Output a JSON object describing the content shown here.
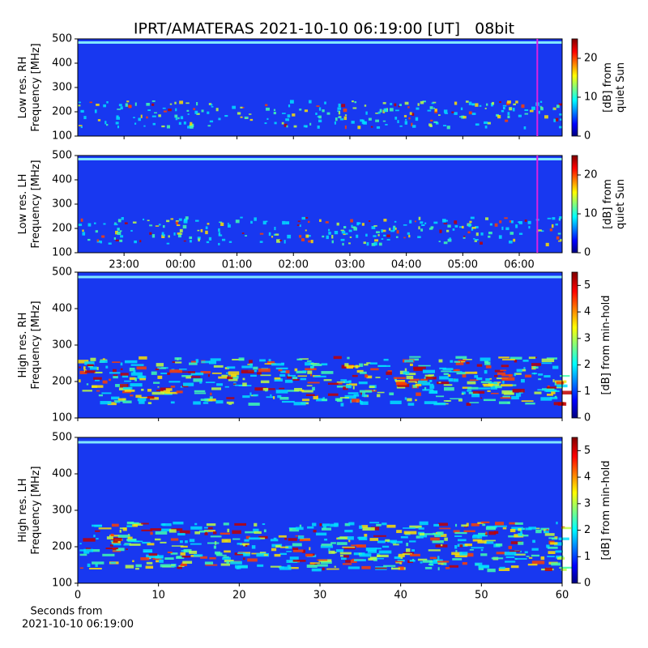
{
  "title": "IPRT/AMATERAS 2021-10-10 06:19:00 [UT]   08bit",
  "chart_data": [
    {
      "type": "heatmap",
      "ylabel": [
        "Low res. RH",
        "Frequency [MHz]"
      ],
      "ylim": [
        100,
        500
      ],
      "yticks": [
        100,
        200,
        300,
        400,
        500
      ],
      "xlim": [
        22.18,
        30.76
      ],
      "xticks": [
        {
          "value": 23,
          "label": "23:00"
        },
        {
          "value": 24,
          "label": "00:00"
        },
        {
          "value": 25,
          "label": "01:00"
        },
        {
          "value": 26,
          "label": "02:00"
        },
        {
          "value": 27,
          "label": "03:00"
        },
        {
          "value": 28,
          "label": "04:00"
        },
        {
          "value": 29,
          "label": "05:00"
        },
        {
          "value": 30,
          "label": "06:00"
        }
      ],
      "show_xtick_labels": false,
      "marker_x": 30.32,
      "marker_color": "#e020e0",
      "colorbar": {
        "label": [
          "[dB] from",
          "quiet Sun"
        ],
        "lim": [
          0,
          25
        ],
        "ticks": [
          0,
          10,
          20
        ],
        "colormap": "jet"
      }
    },
    {
      "type": "heatmap",
      "ylabel": [
        "Low res. LH",
        "Frequency [MHz]"
      ],
      "ylim": [
        100,
        500
      ],
      "yticks": [
        100,
        200,
        300,
        400,
        500
      ],
      "xlim": [
        22.18,
        30.76
      ],
      "xticks": [
        {
          "value": 23,
          "label": "23:00"
        },
        {
          "value": 24,
          "label": "00:00"
        },
        {
          "value": 25,
          "label": "01:00"
        },
        {
          "value": 26,
          "label": "02:00"
        },
        {
          "value": 27,
          "label": "03:00"
        },
        {
          "value": 28,
          "label": "04:00"
        },
        {
          "value": 29,
          "label": "05:00"
        },
        {
          "value": 30,
          "label": "06:00"
        }
      ],
      "show_xtick_labels": true,
      "marker_x": 30.32,
      "marker_color": "#e020e0",
      "colorbar": {
        "label": [
          "[dB] from",
          "quiet Sun"
        ],
        "lim": [
          0,
          25
        ],
        "ticks": [
          0,
          10,
          20
        ],
        "colormap": "jet"
      }
    },
    {
      "type": "heatmap",
      "ylabel": [
        "High res. RH",
        "Frequency [MHz]"
      ],
      "ylim": [
        100,
        500
      ],
      "yticks": [
        100,
        200,
        300,
        400,
        500
      ],
      "xlim": [
        0,
        60
      ],
      "xticks": [
        0,
        10,
        20,
        30,
        40,
        50,
        60
      ],
      "show_xtick_labels": false,
      "colorbar": {
        "label": [
          "[dB] from min-hold"
        ],
        "lim": [
          0,
          5.5
        ],
        "ticks": [
          0,
          1,
          2,
          3,
          4,
          5
        ],
        "colormap": "jet"
      }
    },
    {
      "type": "heatmap",
      "ylabel": [
        "High res. LH",
        "Frequency [MHz]"
      ],
      "ylim": [
        100,
        500
      ],
      "yticks": [
        100,
        200,
        300,
        400,
        500
      ],
      "xlim": [
        0,
        60
      ],
      "xticks": [
        0,
        10,
        20,
        30,
        40,
        50,
        60
      ],
      "show_xtick_labels": true,
      "xlabel": [
        "Seconds from",
        "2021-10-10 06:19:00"
      ],
      "colorbar": {
        "label": [
          "[dB] from min-hold"
        ],
        "lim": [
          0,
          5.5
        ],
        "ticks": [
          0,
          1,
          2,
          3,
          4,
          5
        ],
        "colormap": "jet"
      }
    }
  ]
}
